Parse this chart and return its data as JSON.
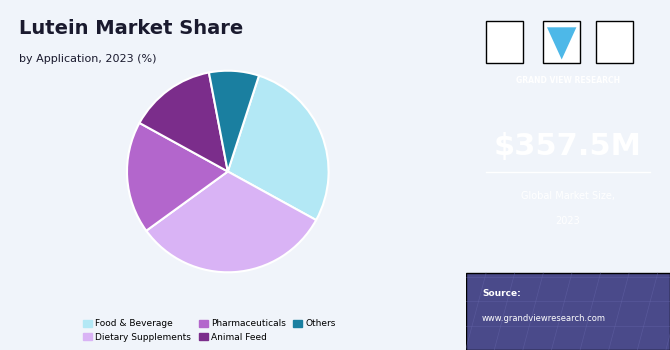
{
  "title": "Lutein Market Share",
  "subtitle": "by Application, 2023 (%)",
  "slices": [
    {
      "label": "Food & Beverage",
      "value": 28,
      "color": "#b3e8f5"
    },
    {
      "label": "Dietary Supplements",
      "value": 32,
      "color": "#d9b3f5"
    },
    {
      "label": "Pharmaceuticals",
      "value": 18,
      "color": "#b366cc"
    },
    {
      "label": "Animal Feed",
      "value": 14,
      "color": "#7b2d8b"
    },
    {
      "label": "Others",
      "value": 8,
      "color": "#1a7fa0"
    }
  ],
  "market_size": "$357.5M",
  "market_label1": "Global Market Size,",
  "market_label2": "2023",
  "source_label": "Source:",
  "source_url": "www.grandviewresearch.com",
  "right_panel_bg": "#3b1f5e",
  "right_panel_bottom_bg": "#4a4a8a",
  "left_panel_bg": "#f0f4fa",
  "title_color": "#1a1a2e",
  "subtitle_color": "#1a1a2e"
}
